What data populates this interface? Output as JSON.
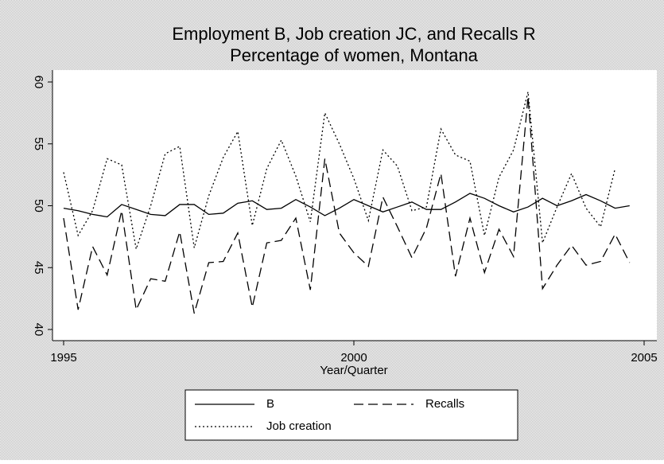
{
  "chart_data": {
    "type": "line",
    "title": "Employment B, Job creation JC, and Recalls R",
    "subtitle": "Percentage of women, Montana",
    "x_label": "Year/Quarter",
    "x": [
      1995,
      1995.25,
      1995.5,
      1995.75,
      1996,
      1996.25,
      1996.5,
      1996.75,
      1997,
      1997.25,
      1997.5,
      1997.75,
      1998,
      1998.25,
      1998.5,
      1998.75,
      1999,
      1999.25,
      1999.5,
      1999.75,
      2000,
      2000.25,
      2000.5,
      2000.75,
      2001,
      2001.25,
      2001.5,
      2001.75,
      2002,
      2002.25,
      2002.5,
      2002.75,
      2003,
      2003.25,
      2003.5,
      2003.75,
      2004,
      2004.25,
      2004.5,
      2004.75
    ],
    "series": [
      {
        "name": "B",
        "color": "#000000",
        "dash": "solid",
        "values": [
          49.8,
          49.6,
          49.3,
          49.1,
          50.1,
          49.7,
          49.3,
          49.2,
          50.1,
          50.1,
          49.3,
          49.4,
          50.2,
          50.4,
          49.7,
          49.8,
          50.5,
          49.9,
          49.2,
          49.8,
          50.5,
          50.0,
          49.5,
          49.9,
          50.3,
          49.7,
          49.7,
          50.3,
          51.0,
          50.6,
          50.0,
          49.5,
          49.9,
          50.6,
          50.0,
          50.4,
          50.9,
          50.4,
          49.8,
          50.0
        ]
      },
      {
        "name": "Recalls",
        "color": "#000000",
        "dash": "dashed",
        "values": [
          49.0,
          41.6,
          46.7,
          44.4,
          49.6,
          41.6,
          44.1,
          43.9,
          47.9,
          41.3,
          45.4,
          45.5,
          47.8,
          41.8,
          47.0,
          47.2,
          49.0,
          43.2,
          53.8,
          47.8,
          46.2,
          45.1,
          50.7,
          48.3,
          45.8,
          48.2,
          52.6,
          44.3,
          49.0,
          44.6,
          48.1,
          45.9,
          58.8,
          43.3,
          45.2,
          46.8,
          45.2,
          45.5,
          47.7,
          45.4
        ]
      },
      {
        "name": "Job creation",
        "color": "#000000",
        "dash": "dotted",
        "values": [
          52.7,
          47.6,
          49.6,
          53.8,
          53.3,
          46.5,
          50.0,
          54.2,
          54.8,
          46.6,
          50.8,
          53.9,
          56.0,
          48.4,
          53.0,
          55.3,
          52.4,
          48.7,
          57.5,
          55.0,
          52.2,
          48.8,
          54.5,
          53.2,
          49.6,
          49.9,
          56.2,
          54.1,
          53.6,
          47.6,
          52.3,
          54.5,
          59.2,
          47.0,
          49.9,
          52.6,
          49.8,
          48.3,
          53.0,
          null
        ]
      }
    ],
    "xlim": [
      1995,
      2005
    ],
    "xticks": [
      1995,
      2000,
      2005
    ],
    "ylim": [
      40,
      60
    ],
    "yticks": [
      40,
      45,
      50,
      55,
      60
    ],
    "legend": "bottom"
  }
}
